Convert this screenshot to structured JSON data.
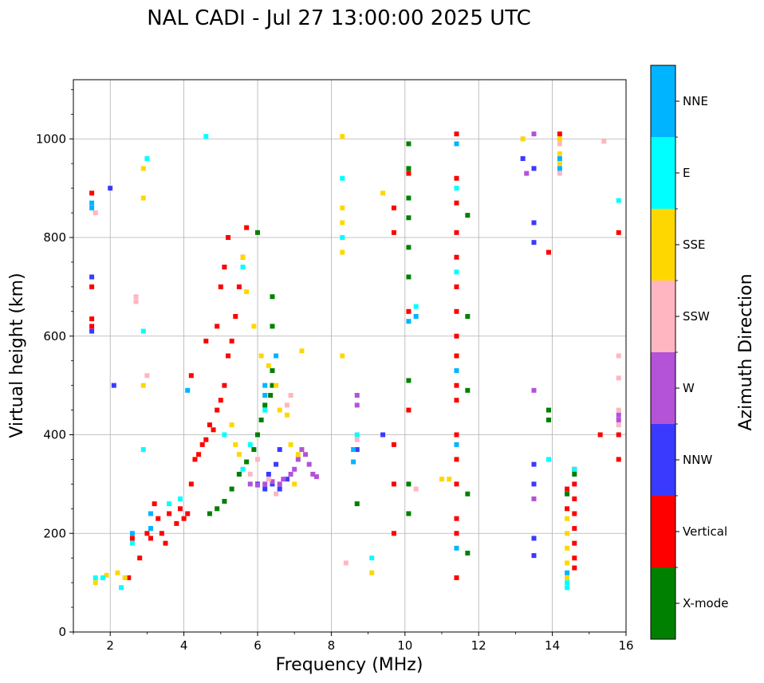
{
  "chart_data": {
    "type": "scatter",
    "title": "NAL CADI - Jul 27 13:00:00 2025 UTC",
    "xlabel": "Frequency (MHz)",
    "ylabel": "Virtual height (km)",
    "xlim": [
      1,
      16
    ],
    "ylim": [
      0,
      1120
    ],
    "xticks": [
      2,
      4,
      6,
      8,
      10,
      12,
      14,
      16
    ],
    "yticks": [
      0,
      200,
      400,
      600,
      800,
      1000
    ],
    "grid": true,
    "colorbar": {
      "label": "Azimuth Direction",
      "categories": [
        {
          "name": "X-mode",
          "color": "#008000"
        },
        {
          "name": "Vertical",
          "color": "#ff0000"
        },
        {
          "name": "NNW",
          "color": "#3a3aff"
        },
        {
          "name": "W",
          "color": "#b452d8"
        },
        {
          "name": "SSW",
          "color": "#ffb6c1"
        },
        {
          "name": "SSE",
          "color": "#ffd700"
        },
        {
          "name": "E",
          "color": "#00ffff"
        },
        {
          "name": "NNE",
          "color": "#00b4ff"
        }
      ]
    },
    "series": [
      {
        "name": "Vertical",
        "color": "#ff0000",
        "points": [
          [
            1.5,
            890
          ],
          [
            1.5,
            635
          ],
          [
            1.5,
            620
          ],
          [
            1.5,
            700
          ],
          [
            2.5,
            110
          ],
          [
            2.6,
            190
          ],
          [
            2.8,
            150
          ],
          [
            3.0,
            200
          ],
          [
            3.1,
            190
          ],
          [
            3.2,
            260
          ],
          [
            3.3,
            230
          ],
          [
            3.4,
            200
          ],
          [
            3.5,
            180
          ],
          [
            3.6,
            240
          ],
          [
            3.8,
            220
          ],
          [
            3.9,
            250
          ],
          [
            4.0,
            230
          ],
          [
            4.1,
            240
          ],
          [
            4.2,
            300
          ],
          [
            4.3,
            350
          ],
          [
            4.4,
            360
          ],
          [
            4.5,
            380
          ],
          [
            4.6,
            390
          ],
          [
            4.7,
            420
          ],
          [
            4.8,
            410
          ],
          [
            4.9,
            450
          ],
          [
            5.0,
            470
          ],
          [
            5.1,
            500
          ],
          [
            5.2,
            560
          ],
          [
            5.3,
            590
          ],
          [
            5.4,
            640
          ],
          [
            5.5,
            700
          ],
          [
            5.6,
            760
          ],
          [
            5.7,
            820
          ],
          [
            4.2,
            520
          ],
          [
            4.6,
            590
          ],
          [
            4.9,
            620
          ],
          [
            5.0,
            700
          ],
          [
            5.1,
            740
          ],
          [
            5.2,
            800
          ],
          [
            9.7,
            860
          ],
          [
            9.7,
            810
          ],
          [
            9.7,
            380
          ],
          [
            9.7,
            300
          ],
          [
            9.7,
            200
          ],
          [
            10.1,
            930
          ],
          [
            10.1,
            650
          ],
          [
            10.1,
            450
          ],
          [
            11.4,
            1010
          ],
          [
            11.4,
            920
          ],
          [
            11.4,
            870
          ],
          [
            11.4,
            810
          ],
          [
            11.4,
            760
          ],
          [
            11.4,
            700
          ],
          [
            11.4,
            650
          ],
          [
            11.4,
            600
          ],
          [
            11.4,
            560
          ],
          [
            11.4,
            500
          ],
          [
            11.4,
            470
          ],
          [
            11.4,
            400
          ],
          [
            11.4,
            350
          ],
          [
            11.4,
            300
          ],
          [
            11.4,
            230
          ],
          [
            11.4,
            200
          ],
          [
            11.4,
            110
          ],
          [
            14.6,
            330
          ],
          [
            14.6,
            300
          ],
          [
            14.6,
            270
          ],
          [
            14.6,
            240
          ],
          [
            14.6,
            210
          ],
          [
            14.6,
            180
          ],
          [
            14.6,
            150
          ],
          [
            14.6,
            130
          ],
          [
            14.4,
            290
          ],
          [
            14.4,
            250
          ],
          [
            15.3,
            400
          ],
          [
            15.8,
            400
          ],
          [
            15.8,
            350
          ],
          [
            15.8,
            810
          ],
          [
            14.2,
            1010
          ],
          [
            13.9,
            770
          ]
        ]
      },
      {
        "name": "X-mode",
        "color": "#008000",
        "points": [
          [
            4.7,
            240
          ],
          [
            4.9,
            250
          ],
          [
            5.1,
            265
          ],
          [
            5.3,
            290
          ],
          [
            5.5,
            320
          ],
          [
            5.7,
            345
          ],
          [
            5.9,
            370
          ],
          [
            6.0,
            400
          ],
          [
            6.1,
            430
          ],
          [
            6.2,
            460
          ],
          [
            6.35,
            480
          ],
          [
            6.4,
            500
          ],
          [
            6.4,
            530
          ],
          [
            6.4,
            620
          ],
          [
            6.4,
            680
          ],
          [
            6.0,
            810
          ],
          [
            8.7,
            260
          ],
          [
            10.1,
            990
          ],
          [
            10.1,
            940
          ],
          [
            10.1,
            880
          ],
          [
            10.1,
            840
          ],
          [
            10.1,
            780
          ],
          [
            10.1,
            720
          ],
          [
            10.1,
            510
          ],
          [
            10.1,
            300
          ],
          [
            10.1,
            240
          ],
          [
            11.7,
            845
          ],
          [
            11.7,
            640
          ],
          [
            11.7,
            490
          ],
          [
            11.7,
            280
          ],
          [
            11.7,
            160
          ],
          [
            13.9,
            450
          ],
          [
            13.9,
            430
          ],
          [
            14.4,
            280
          ],
          [
            14.6,
            320
          ]
        ]
      },
      {
        "name": "NNW",
        "color": "#3a3aff",
        "points": [
          [
            1.5,
            610
          ],
          [
            1.5,
            720
          ],
          [
            2.0,
            900
          ],
          [
            2.1,
            500
          ],
          [
            6.0,
            300
          ],
          [
            6.2,
            290
          ],
          [
            6.4,
            300
          ],
          [
            6.6,
            290
          ],
          [
            6.8,
            310
          ],
          [
            6.3,
            320
          ],
          [
            6.5,
            340
          ],
          [
            6.6,
            370
          ],
          [
            8.7,
            370
          ],
          [
            9.4,
            400
          ],
          [
            13.5,
            940
          ],
          [
            13.5,
            830
          ],
          [
            13.5,
            790
          ],
          [
            13.5,
            340
          ],
          [
            13.5,
            300
          ],
          [
            13.5,
            190
          ],
          [
            13.5,
            155
          ],
          [
            13.2,
            960
          ]
        ]
      },
      {
        "name": "W",
        "color": "#b452d8",
        "points": [
          [
            5.8,
            300
          ],
          [
            6.0,
            298
          ],
          [
            6.2,
            300
          ],
          [
            6.4,
            305
          ],
          [
            6.6,
            300
          ],
          [
            6.7,
            310
          ],
          [
            6.9,
            320
          ],
          [
            7.0,
            330
          ],
          [
            7.1,
            350
          ],
          [
            7.2,
            370
          ],
          [
            7.3,
            360
          ],
          [
            7.4,
            340
          ],
          [
            7.5,
            320
          ],
          [
            7.6,
            315
          ],
          [
            8.7,
            480
          ],
          [
            8.7,
            460
          ],
          [
            13.5,
            1010
          ],
          [
            13.5,
            490
          ],
          [
            13.5,
            270
          ],
          [
            13.3,
            930
          ],
          [
            15.8,
            440
          ],
          [
            15.8,
            430
          ]
        ]
      },
      {
        "name": "SSW",
        "color": "#ffb6c1",
        "points": [
          [
            1.6,
            850
          ],
          [
            2.7,
            680
          ],
          [
            2.7,
            670
          ],
          [
            3.0,
            520
          ],
          [
            5.8,
            320
          ],
          [
            6.0,
            350
          ],
          [
            6.3,
            310
          ],
          [
            6.5,
            280
          ],
          [
            6.8,
            460
          ],
          [
            6.9,
            480
          ],
          [
            8.4,
            140
          ],
          [
            8.7,
            390
          ],
          [
            10.3,
            290
          ],
          [
            13.2,
            1000
          ],
          [
            14.2,
            990
          ],
          [
            14.2,
            930
          ],
          [
            15.4,
            995
          ],
          [
            15.8,
            560
          ],
          [
            15.8,
            450
          ],
          [
            15.8,
            420
          ],
          [
            15.8,
            515
          ]
        ]
      },
      {
        "name": "SSE",
        "color": "#ffd700",
        "points": [
          [
            1.6,
            100
          ],
          [
            1.9,
            115
          ],
          [
            2.2,
            120
          ],
          [
            2.4,
            110
          ],
          [
            2.9,
            940
          ],
          [
            2.9,
            880
          ],
          [
            2.9,
            500
          ],
          [
            5.3,
            420
          ],
          [
            5.4,
            380
          ],
          [
            5.5,
            360
          ],
          [
            5.6,
            760
          ],
          [
            5.7,
            690
          ],
          [
            5.9,
            620
          ],
          [
            6.1,
            560
          ],
          [
            6.3,
            540
          ],
          [
            6.5,
            500
          ],
          [
            6.6,
            450
          ],
          [
            6.8,
            440
          ],
          [
            6.9,
            380
          ],
          [
            7.1,
            360
          ],
          [
            7.2,
            570
          ],
          [
            7.0,
            300
          ],
          [
            8.3,
            1005
          ],
          [
            8.3,
            860
          ],
          [
            8.3,
            830
          ],
          [
            8.3,
            770
          ],
          [
            8.3,
            560
          ],
          [
            9.1,
            120
          ],
          [
            9.4,
            890
          ],
          [
            11.0,
            310
          ],
          [
            11.2,
            310
          ],
          [
            13.2,
            1000
          ],
          [
            14.2,
            1000
          ],
          [
            14.2,
            970
          ],
          [
            14.2,
            950
          ],
          [
            14.4,
            230
          ],
          [
            14.4,
            200
          ],
          [
            14.4,
            170
          ],
          [
            14.4,
            140
          ],
          [
            14.4,
            110
          ]
        ]
      },
      {
        "name": "E",
        "color": "#00ffff",
        "points": [
          [
            1.6,
            110
          ],
          [
            1.8,
            110
          ],
          [
            2.3,
            90
          ],
          [
            2.6,
            180
          ],
          [
            2.9,
            370
          ],
          [
            2.9,
            610
          ],
          [
            3.0,
            960
          ],
          [
            3.6,
            260
          ],
          [
            3.9,
            270
          ],
          [
            4.6,
            1005
          ],
          [
            5.1,
            400
          ],
          [
            5.6,
            740
          ],
          [
            5.8,
            380
          ],
          [
            5.6,
            330
          ],
          [
            6.2,
            450
          ],
          [
            8.3,
            920
          ],
          [
            8.3,
            800
          ],
          [
            8.7,
            400
          ],
          [
            9.1,
            150
          ],
          [
            10.3,
            660
          ],
          [
            11.4,
            900
          ],
          [
            11.4,
            730
          ],
          [
            13.9,
            350
          ],
          [
            14.4,
            100
          ],
          [
            14.4,
            90
          ],
          [
            14.6,
            330
          ],
          [
            15.8,
            875
          ]
        ]
      },
      {
        "name": "NNE",
        "color": "#00b4ff",
        "points": [
          [
            1.5,
            870
          ],
          [
            1.5,
            860
          ],
          [
            2.6,
            200
          ],
          [
            3.1,
            240
          ],
          [
            3.1,
            210
          ],
          [
            4.1,
            490
          ],
          [
            6.2,
            500
          ],
          [
            6.2,
            480
          ],
          [
            6.5,
            560
          ],
          [
            8.6,
            370
          ],
          [
            8.6,
            345
          ],
          [
            10.1,
            630
          ],
          [
            10.3,
            640
          ],
          [
            11.4,
            990
          ],
          [
            11.4,
            530
          ],
          [
            11.4,
            380
          ],
          [
            11.4,
            170
          ],
          [
            14.2,
            940
          ],
          [
            14.2,
            960
          ],
          [
            14.4,
            120
          ]
        ]
      }
    ]
  }
}
